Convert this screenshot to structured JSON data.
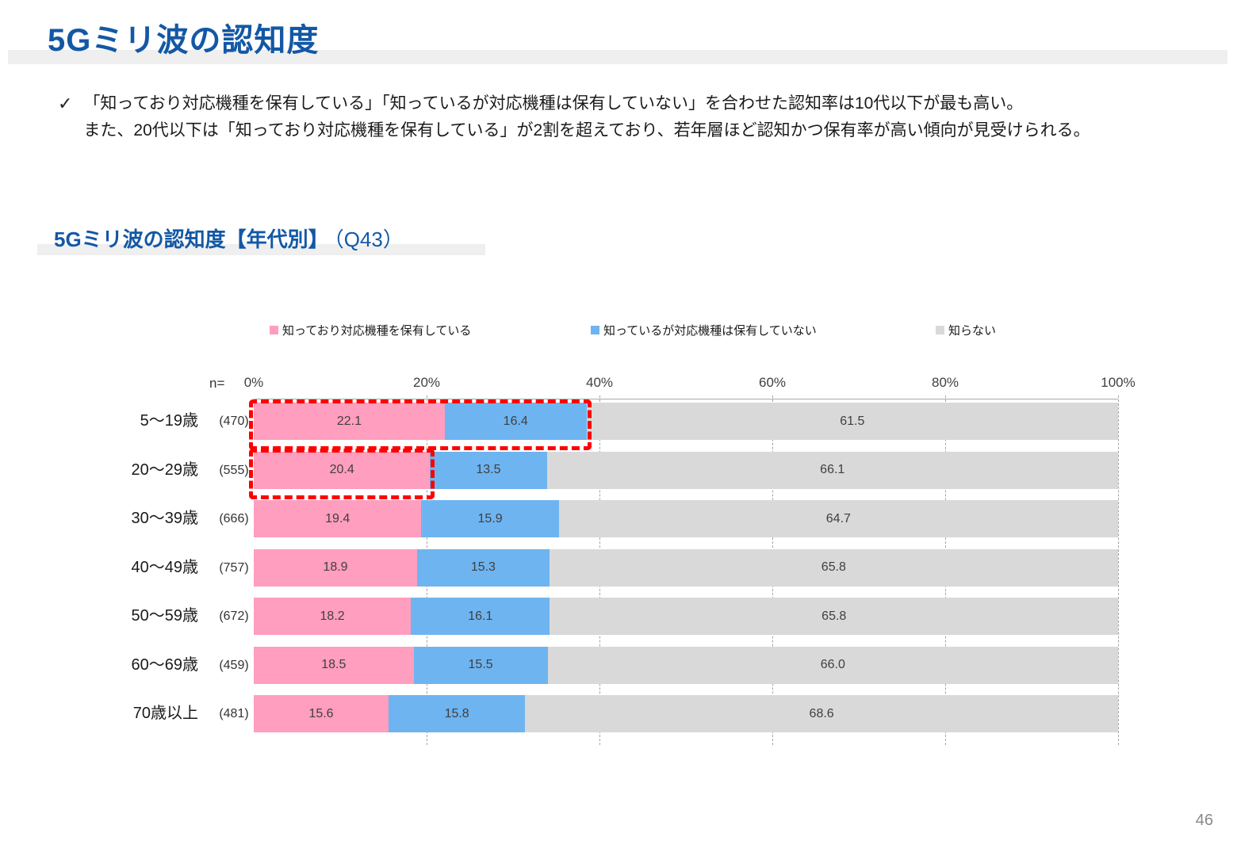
{
  "page": {
    "title": "5Gミリ波の認知度",
    "checkmark": "✓",
    "bullet_lines": [
      "「知っており対応機種を保有している」「知っているが対応機種は保有していない」を合わせた認知率は10代以下が最も高い。",
      "また、20代以下は「知っており対応機種を保有している」が2割を超えており、若年層ほど認知かつ保有率が高い傾向が見受けられる。"
    ],
    "page_number": "46"
  },
  "section": {
    "heading_bold": "5Gミリ波の認知度【年代別】",
    "heading_suffix": "（Q43）"
  },
  "chart_data": {
    "type": "bar",
    "stacked": true,
    "orientation": "horizontal",
    "n_label": "n=",
    "xlim": [
      0,
      100
    ],
    "x_ticks": [
      "0%",
      "20%",
      "40%",
      "60%",
      "80%",
      "100%"
    ],
    "grid": "dashed-vertical",
    "legend_position": "top",
    "categories": [
      "5～19歳",
      "20～29歳",
      "30～39歳",
      "40～49歳",
      "50～59歳",
      "60～69歳",
      "70歳以上"
    ],
    "n_values": [
      "(470)",
      "(555)",
      "(666)",
      "(757)",
      "(672)",
      "(459)",
      "(481)"
    ],
    "legend": [
      {
        "label": "知っており対応機種を保有している",
        "color": "#ff9ebe"
      },
      {
        "label": "知っているが対応機種は保有していない",
        "color": "#6eb4f0"
      },
      {
        "label": "知らない",
        "color": "#d9d9d9"
      }
    ],
    "series": [
      {
        "name": "知っており対応機種を保有している",
        "values": [
          22.1,
          20.4,
          19.4,
          18.9,
          18.2,
          18.5,
          15.6
        ]
      },
      {
        "name": "知っているが対応機種は保有していない",
        "values": [
          16.4,
          13.5,
          15.9,
          15.3,
          16.1,
          15.5,
          15.8
        ]
      },
      {
        "name": "知らない",
        "values": [
          61.5,
          66.1,
          64.7,
          65.8,
          65.8,
          66.0,
          68.6
        ]
      }
    ],
    "highlights": [
      {
        "row": 0,
        "segments": [
          0,
          1
        ]
      },
      {
        "row": 1,
        "segments": [
          0
        ]
      }
    ],
    "highlight_color": "#ff0000"
  }
}
